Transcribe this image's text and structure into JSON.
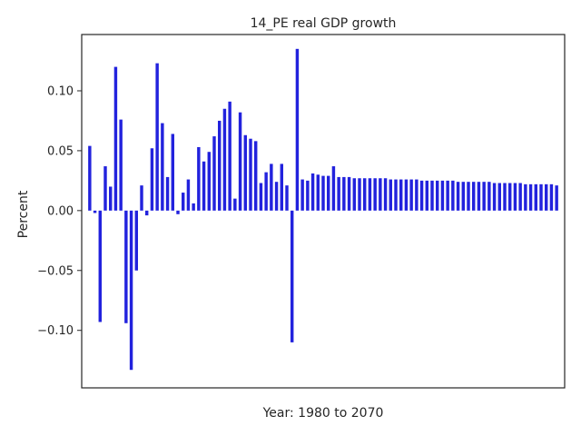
{
  "chart_data": {
    "type": "bar",
    "title": "14_PE real GDP growth",
    "xlabel": "Year: 1980 to 2070",
    "ylabel": "Percent",
    "x_range": [
      1980,
      2070
    ],
    "ylim": [
      -0.148,
      0.147
    ],
    "yticks": [
      -0.1,
      -0.05,
      0.0,
      0.05,
      0.1
    ],
    "ytick_labels": [
      "−0.10",
      "−0.05",
      "0.00",
      "0.05",
      "0.10"
    ],
    "bar_color": "#2222dd",
    "grid": false,
    "categories": [
      1980,
      1981,
      1982,
      1983,
      1984,
      1985,
      1986,
      1987,
      1988,
      1989,
      1990,
      1991,
      1992,
      1993,
      1994,
      1995,
      1996,
      1997,
      1998,
      1999,
      2000,
      2001,
      2002,
      2003,
      2004,
      2005,
      2006,
      2007,
      2008,
      2009,
      2010,
      2011,
      2012,
      2013,
      2014,
      2015,
      2016,
      2017,
      2018,
      2019,
      2020,
      2021,
      2022,
      2023,
      2024,
      2025,
      2026,
      2027,
      2028,
      2029,
      2030,
      2031,
      2032,
      2033,
      2034,
      2035,
      2036,
      2037,
      2038,
      2039,
      2040,
      2041,
      2042,
      2043,
      2044,
      2045,
      2046,
      2047,
      2048,
      2049,
      2050,
      2051,
      2052,
      2053,
      2054,
      2055,
      2056,
      2057,
      2058,
      2059,
      2060,
      2061,
      2062,
      2063,
      2064,
      2065,
      2066,
      2067,
      2068,
      2069,
      2070
    ],
    "values": [
      0.054,
      -0.002,
      -0.093,
      0.037,
      0.02,
      0.12,
      0.076,
      -0.094,
      -0.133,
      -0.05,
      0.021,
      -0.004,
      0.052,
      0.123,
      0.073,
      0.028,
      0.064,
      -0.003,
      0.015,
      0.026,
      0.006,
      0.053,
      0.041,
      0.049,
      0.062,
      0.075,
      0.085,
      0.091,
      0.01,
      0.082,
      0.063,
      0.06,
      0.058,
      0.023,
      0.032,
      0.039,
      0.024,
      0.039,
      0.021,
      -0.11,
      0.135,
      0.026,
      0.025,
      0.031,
      0.03,
      0.029,
      0.029,
      0.037,
      0.028,
      0.028,
      0.028,
      0.027,
      0.027,
      0.027,
      0.027,
      0.027,
      0.027,
      0.027,
      0.026,
      0.026,
      0.026,
      0.026,
      0.026,
      0.026,
      0.025,
      0.025,
      0.025,
      0.025,
      0.025,
      0.025,
      0.025,
      0.024,
      0.024,
      0.024,
      0.024,
      0.024,
      0.024,
      0.024,
      0.023,
      0.023,
      0.023,
      0.023,
      0.023,
      0.023,
      0.022,
      0.022,
      0.022,
      0.022,
      0.022,
      0.022,
      0.021
    ]
  }
}
